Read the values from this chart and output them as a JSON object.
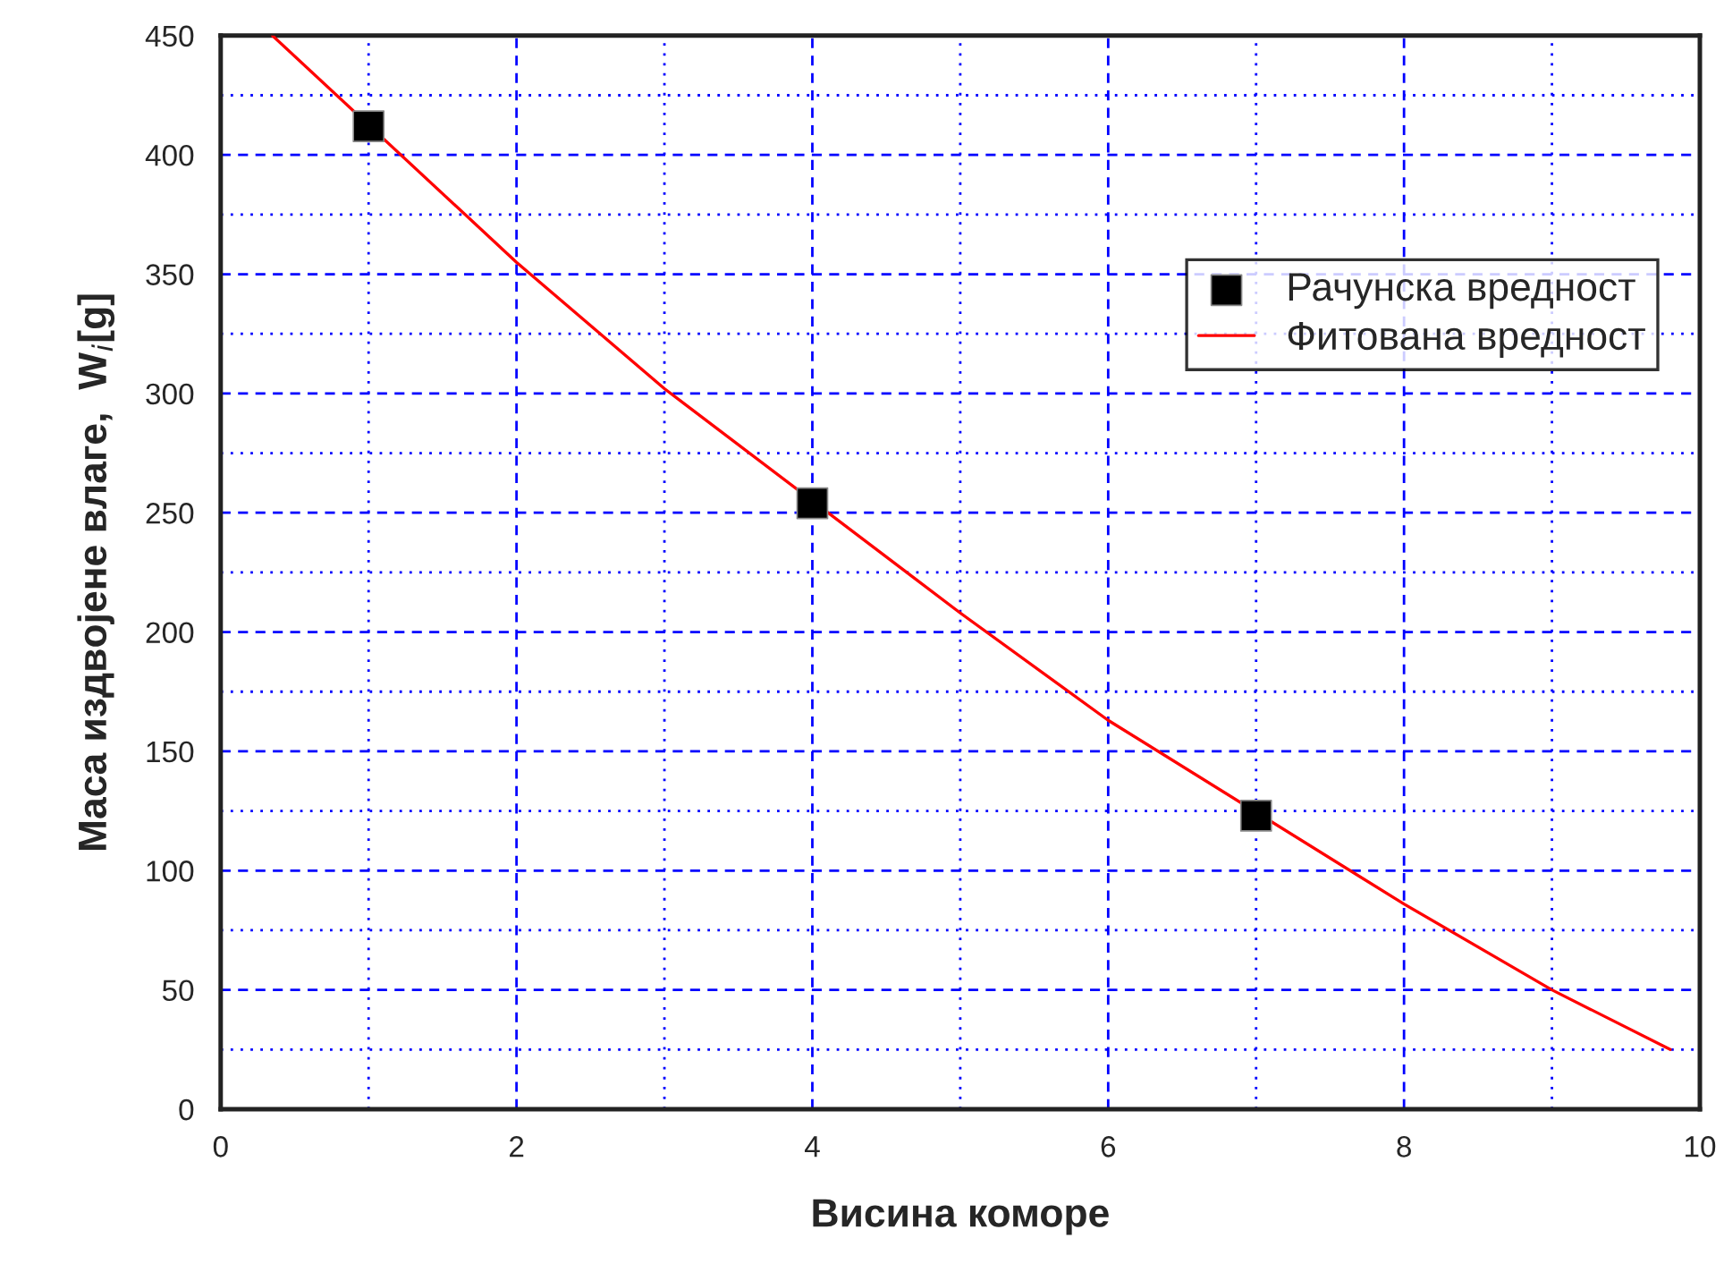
{
  "chart_data": {
    "type": "scatter",
    "xlabel": "Висина коморе",
    "ylabel": "Маса издвојене влаге,  W$_{i}$[g]",
    "xlim": [
      0,
      10
    ],
    "ylim": [
      0,
      450
    ],
    "xticks": [
      0,
      2,
      4,
      6,
      8,
      10
    ],
    "yticks": [
      0,
      50,
      100,
      150,
      200,
      250,
      300,
      350,
      400,
      450
    ],
    "grid": true,
    "legend": "right",
    "series": [
      {
        "name": "Рачунска вредност",
        "marker": "square",
        "color": "#000000",
        "x": [
          1,
          4,
          7
        ],
        "values": [
          412,
          254,
          123
        ]
      },
      {
        "name": "Фитована вредност",
        "type": "line",
        "marker": "none",
        "line_style": "solid",
        "color": "#ff0000",
        "x": [
          0.35,
          2,
          3,
          5,
          6,
          8,
          9,
          9.8
        ],
        "values": [
          450,
          355,
          302,
          208,
          163,
          86,
          50,
          25
        ]
      }
    ]
  }
}
